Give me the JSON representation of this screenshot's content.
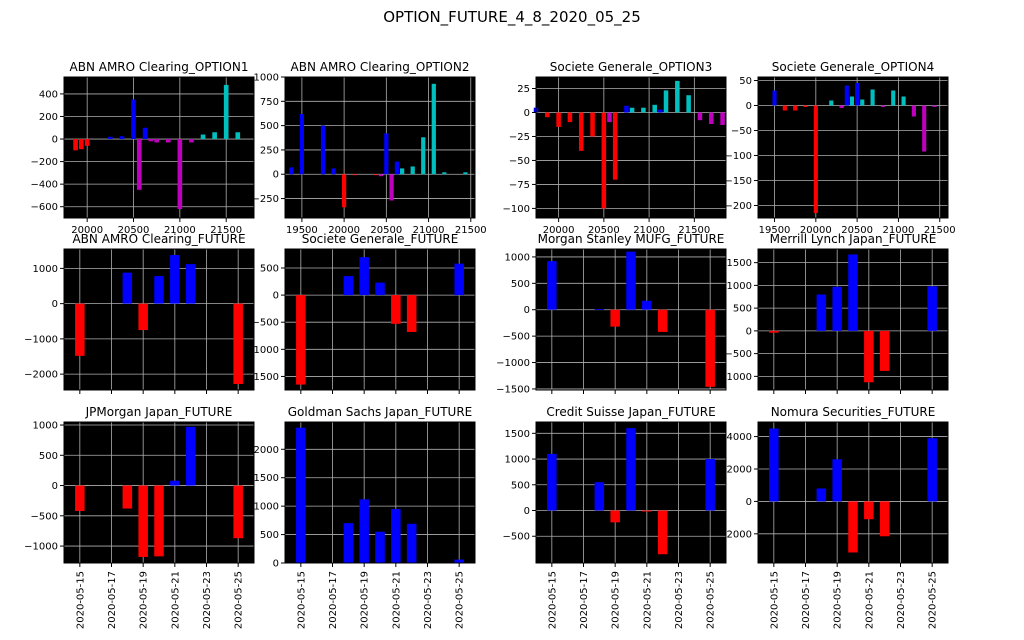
{
  "figure": {
    "title": "OPTION_FUTURE_4_8_2020_05_25",
    "colors": {
      "red": "#ff0000",
      "blue": "#0000ff",
      "magenta": "#bf00bf",
      "cyan": "#00bfbf",
      "background": "#000000",
      "grid": "#b0b0b0"
    }
  },
  "chart_data": [
    {
      "title": "ABN AMRO Clearing_OPTION1",
      "type": "bar",
      "xlim": [
        19750,
        21800
      ],
      "ylim": [
        -700,
        550
      ],
      "xticks": [
        20000,
        20500,
        21000,
        21500
      ],
      "yticks": [
        -600,
        -400,
        -200,
        0,
        200,
        400
      ],
      "grid": true,
      "bar_width": 50,
      "bars": [
        {
          "x": 19875,
          "y": -100,
          "color": "red"
        },
        {
          "x": 19937,
          "y": -90,
          "color": "red"
        },
        {
          "x": 20000,
          "y": -60,
          "color": "red"
        },
        {
          "x": 20250,
          "y": 20,
          "color": "blue"
        },
        {
          "x": 20375,
          "y": 25,
          "color": "blue"
        },
        {
          "x": 20500,
          "y": 350,
          "color": "blue"
        },
        {
          "x": 20562,
          "y": -450,
          "color": "magenta"
        },
        {
          "x": 20625,
          "y": 100,
          "color": "blue"
        },
        {
          "x": 20687,
          "y": -20,
          "color": "magenta"
        },
        {
          "x": 20750,
          "y": -30,
          "color": "magenta"
        },
        {
          "x": 20875,
          "y": -30,
          "color": "magenta"
        },
        {
          "x": 21000,
          "y": -620,
          "color": "magenta"
        },
        {
          "x": 21125,
          "y": -30,
          "color": "magenta"
        },
        {
          "x": 21250,
          "y": 40,
          "color": "cyan"
        },
        {
          "x": 21375,
          "y": 60,
          "color": "cyan"
        },
        {
          "x": 21500,
          "y": 480,
          "color": "cyan"
        },
        {
          "x": 21625,
          "y": 60,
          "color": "cyan"
        }
      ]
    },
    {
      "title": "ABN AMRO Clearing_OPTION2",
      "type": "bar",
      "xlim": [
        19300,
        21550
      ],
      "ylim": [
        -450,
        1000
      ],
      "xticks": [
        19500,
        20000,
        20500,
        21000,
        21500
      ],
      "yticks": [
        -250,
        0,
        250,
        500,
        750,
        1000
      ],
      "grid": true,
      "bar_width": 50,
      "bars": [
        {
          "x": 19375,
          "y": 70,
          "color": "blue"
        },
        {
          "x": 19500,
          "y": 620,
          "color": "blue"
        },
        {
          "x": 19750,
          "y": 500,
          "color": "blue"
        },
        {
          "x": 19875,
          "y": 60,
          "color": "blue"
        },
        {
          "x": 20000,
          "y": -340,
          "color": "red"
        },
        {
          "x": 20125,
          "y": -10,
          "color": "red"
        },
        {
          "x": 20375,
          "y": -10,
          "color": "red"
        },
        {
          "x": 20437,
          "y": -20,
          "color": "magenta"
        },
        {
          "x": 20500,
          "y": 420,
          "color": "blue"
        },
        {
          "x": 20562,
          "y": -270,
          "color": "magenta"
        },
        {
          "x": 20625,
          "y": 130,
          "color": "blue"
        },
        {
          "x": 20687,
          "y": 60,
          "color": "cyan"
        },
        {
          "x": 20812,
          "y": 80,
          "color": "cyan"
        },
        {
          "x": 20937,
          "y": 380,
          "color": "cyan"
        },
        {
          "x": 21062,
          "y": 930,
          "color": "cyan"
        },
        {
          "x": 21187,
          "y": 20,
          "color": "cyan"
        },
        {
          "x": 21437,
          "y": 20,
          "color": "cyan"
        }
      ]
    },
    {
      "title": "Societe Generale_OPTION3",
      "type": "bar",
      "xlim": [
        19750,
        21850
      ],
      "ylim": [
        -110,
        37
      ],
      "xticks": [
        20000,
        20500,
        21000,
        21500
      ],
      "yticks": [
        -100,
        -75,
        -50,
        -25,
        0,
        25
      ],
      "grid": true,
      "bar_width": 50,
      "bars": [
        {
          "x": 19750,
          "y": 5,
          "color": "blue"
        },
        {
          "x": 19875,
          "y": -5,
          "color": "red"
        },
        {
          "x": 20000,
          "y": -15,
          "color": "red"
        },
        {
          "x": 20125,
          "y": -10,
          "color": "red"
        },
        {
          "x": 20250,
          "y": -40,
          "color": "red"
        },
        {
          "x": 20375,
          "y": -25,
          "color": "red"
        },
        {
          "x": 20500,
          "y": -100,
          "color": "red"
        },
        {
          "x": 20562,
          "y": -10,
          "color": "magenta"
        },
        {
          "x": 20625,
          "y": -70,
          "color": "red"
        },
        {
          "x": 20750,
          "y": 7,
          "color": "blue"
        },
        {
          "x": 20812,
          "y": 5,
          "color": "cyan"
        },
        {
          "x": 20937,
          "y": 5,
          "color": "cyan"
        },
        {
          "x": 21062,
          "y": 8,
          "color": "cyan"
        },
        {
          "x": 21125,
          "y": 3,
          "color": "blue"
        },
        {
          "x": 21187,
          "y": 23,
          "color": "cyan"
        },
        {
          "x": 21312,
          "y": 33,
          "color": "cyan"
        },
        {
          "x": 21437,
          "y": 18,
          "color": "cyan"
        },
        {
          "x": 21562,
          "y": -8,
          "color": "magenta"
        },
        {
          "x": 21687,
          "y": -12,
          "color": "magenta"
        },
        {
          "x": 21812,
          "y": -13,
          "color": "magenta"
        }
      ]
    },
    {
      "title": "Societe Generale_OPTION4",
      "type": "bar",
      "xlim": [
        19300,
        21600
      ],
      "ylim": [
        -225,
        57
      ],
      "xticks": [
        19500,
        20000,
        20500,
        21000,
        21500
      ],
      "yticks": [
        -200,
        -150,
        -100,
        -50,
        0,
        50
      ],
      "grid": true,
      "bar_width": 50,
      "bars": [
        {
          "x": 19500,
          "y": 30,
          "color": "blue"
        },
        {
          "x": 19625,
          "y": -10,
          "color": "red"
        },
        {
          "x": 19750,
          "y": -10,
          "color": "red"
        },
        {
          "x": 19875,
          "y": -3,
          "color": "red"
        },
        {
          "x": 20000,
          "y": -215,
          "color": "red"
        },
        {
          "x": 20187,
          "y": 10,
          "color": "cyan"
        },
        {
          "x": 20312,
          "y": -5,
          "color": "magenta"
        },
        {
          "x": 20375,
          "y": 40,
          "color": "blue"
        },
        {
          "x": 20437,
          "y": 18,
          "color": "cyan"
        },
        {
          "x": 20500,
          "y": 45,
          "color": "blue"
        },
        {
          "x": 20562,
          "y": 12,
          "color": "cyan"
        },
        {
          "x": 20687,
          "y": 32,
          "color": "cyan"
        },
        {
          "x": 20812,
          "y": -3,
          "color": "magenta"
        },
        {
          "x": 20937,
          "y": 30,
          "color": "cyan"
        },
        {
          "x": 21062,
          "y": 18,
          "color": "cyan"
        },
        {
          "x": 21187,
          "y": -22,
          "color": "magenta"
        },
        {
          "x": 21312,
          "y": -92,
          "color": "magenta"
        },
        {
          "x": 21437,
          "y": -3,
          "color": "magenta"
        }
      ]
    },
    {
      "title": "ABN AMRO Clearing_FUTURE",
      "type": "bar",
      "ylim": [
        -2450,
        1550
      ],
      "yticks": [
        -2000,
        -1000,
        0,
        1000
      ],
      "grid": true,
      "bars": [
        {
          "date": "2020-05-15",
          "y": -1480,
          "color": "red"
        },
        {
          "date": "2020-05-18",
          "y": 880,
          "color": "blue"
        },
        {
          "date": "2020-05-19",
          "y": -750,
          "color": "red"
        },
        {
          "date": "2020-05-20",
          "y": 780,
          "color": "blue"
        },
        {
          "date": "2020-05-21",
          "y": 1380,
          "color": "blue"
        },
        {
          "date": "2020-05-22",
          "y": 1120,
          "color": "blue"
        },
        {
          "date": "2020-05-25",
          "y": -2280,
          "color": "red"
        }
      ]
    },
    {
      "title": "Societe Generale_FUTURE",
      "type": "bar",
      "ylim": [
        -1750,
        850
      ],
      "yticks": [
        -1500,
        -1000,
        -500,
        0,
        500
      ],
      "grid": true,
      "bars": [
        {
          "date": "2020-05-15",
          "y": -1650,
          "color": "red"
        },
        {
          "date": "2020-05-18",
          "y": 350,
          "color": "blue"
        },
        {
          "date": "2020-05-19",
          "y": 700,
          "color": "blue"
        },
        {
          "date": "2020-05-20",
          "y": 230,
          "color": "blue"
        },
        {
          "date": "2020-05-21",
          "y": -530,
          "color": "red"
        },
        {
          "date": "2020-05-22",
          "y": -680,
          "color": "red"
        },
        {
          "date": "2020-05-25",
          "y": 580,
          "color": "blue"
        }
      ]
    },
    {
      "title": "Morgan Stanley MUFG_FUTURE",
      "type": "bar",
      "ylim": [
        -1520,
        1150
      ],
      "yticks": [
        -1500,
        -1000,
        -500,
        0,
        500,
        1000
      ],
      "grid": true,
      "bars": [
        {
          "date": "2020-05-15",
          "y": 920,
          "color": "blue"
        },
        {
          "date": "2020-05-18",
          "y": 10,
          "color": "blue"
        },
        {
          "date": "2020-05-19",
          "y": -320,
          "color": "red"
        },
        {
          "date": "2020-05-20",
          "y": 1100,
          "color": "blue"
        },
        {
          "date": "2020-05-21",
          "y": 170,
          "color": "blue"
        },
        {
          "date": "2020-05-22",
          "y": -420,
          "color": "red"
        },
        {
          "date": "2020-05-25",
          "y": -1460,
          "color": "red"
        }
      ]
    },
    {
      "title": "Merrill Lynch Japan_FUTURE",
      "type": "bar",
      "ylim": [
        -1300,
        1800
      ],
      "yticks": [
        -1000,
        -500,
        0,
        500,
        1000,
        1500
      ],
      "grid": true,
      "bars": [
        {
          "date": "2020-05-15",
          "y": -40,
          "color": "red"
        },
        {
          "date": "2020-05-18",
          "y": 800,
          "color": "blue"
        },
        {
          "date": "2020-05-19",
          "y": 970,
          "color": "blue"
        },
        {
          "date": "2020-05-20",
          "y": 1680,
          "color": "blue"
        },
        {
          "date": "2020-05-21",
          "y": -1130,
          "color": "red"
        },
        {
          "date": "2020-05-22",
          "y": -880,
          "color": "red"
        },
        {
          "date": "2020-05-25",
          "y": 980,
          "color": "blue"
        }
      ]
    },
    {
      "title": "JPMorgan Japan_FUTURE",
      "type": "bar",
      "ylim": [
        -1280,
        1050
      ],
      "yticks": [
        -1000,
        -500,
        0,
        500,
        1000
      ],
      "grid": true,
      "xticks": [
        "2020-05-15",
        "2020-05-17",
        "2020-05-19",
        "2020-05-21",
        "2020-05-23",
        "2020-05-25"
      ],
      "bars": [
        {
          "date": "2020-05-15",
          "y": -420,
          "color": "red"
        },
        {
          "date": "2020-05-18",
          "y": -380,
          "color": "red"
        },
        {
          "date": "2020-05-19",
          "y": -1180,
          "color": "red"
        },
        {
          "date": "2020-05-20",
          "y": -1170,
          "color": "red"
        },
        {
          "date": "2020-05-21",
          "y": 80,
          "color": "blue"
        },
        {
          "date": "2020-05-22",
          "y": 970,
          "color": "blue"
        },
        {
          "date": "2020-05-25",
          "y": -870,
          "color": "red"
        }
      ]
    },
    {
      "title": "Goldman Sachs Japan_FUTURE",
      "type": "bar",
      "ylim": [
        0,
        2480
      ],
      "yticks": [
        0,
        500,
        1000,
        1500,
        2000
      ],
      "grid": true,
      "xticks": [
        "2020-05-15",
        "2020-05-17",
        "2020-05-19",
        "2020-05-21",
        "2020-05-23",
        "2020-05-25"
      ],
      "bars": [
        {
          "date": "2020-05-15",
          "y": 2380,
          "color": "blue"
        },
        {
          "date": "2020-05-18",
          "y": 700,
          "color": "blue"
        },
        {
          "date": "2020-05-19",
          "y": 1120,
          "color": "blue"
        },
        {
          "date": "2020-05-20",
          "y": 550,
          "color": "blue"
        },
        {
          "date": "2020-05-21",
          "y": 950,
          "color": "blue"
        },
        {
          "date": "2020-05-22",
          "y": 690,
          "color": "blue"
        },
        {
          "date": "2020-05-25",
          "y": 60,
          "color": "blue"
        }
      ]
    },
    {
      "title": "Credit Suisse Japan_FUTURE",
      "type": "bar",
      "ylim": [
        -1020,
        1720
      ],
      "yticks": [
        -500,
        0,
        500,
        1000,
        1500
      ],
      "grid": true,
      "xticks": [
        "2020-05-15",
        "2020-05-17",
        "2020-05-19",
        "2020-05-21",
        "2020-05-23",
        "2020-05-25"
      ],
      "bars": [
        {
          "date": "2020-05-15",
          "y": 1100,
          "color": "blue"
        },
        {
          "date": "2020-05-18",
          "y": 550,
          "color": "blue"
        },
        {
          "date": "2020-05-19",
          "y": -230,
          "color": "red"
        },
        {
          "date": "2020-05-20",
          "y": 1600,
          "color": "blue"
        },
        {
          "date": "2020-05-21",
          "y": -20,
          "color": "red"
        },
        {
          "date": "2020-05-22",
          "y": -850,
          "color": "red"
        },
        {
          "date": "2020-05-25",
          "y": 1000,
          "color": "blue"
        }
      ]
    },
    {
      "title": "Nomura Securities_FUTURE",
      "type": "bar",
      "ylim": [
        -3800,
        4900
      ],
      "yticks": [
        -2000,
        0,
        2000,
        4000
      ],
      "grid": true,
      "xticks": [
        "2020-05-15",
        "2020-05-17",
        "2020-05-19",
        "2020-05-21",
        "2020-05-23",
        "2020-05-25"
      ],
      "bars": [
        {
          "date": "2020-05-15",
          "y": 4500,
          "color": "blue"
        },
        {
          "date": "2020-05-18",
          "y": 800,
          "color": "blue"
        },
        {
          "date": "2020-05-19",
          "y": 2600,
          "color": "blue"
        },
        {
          "date": "2020-05-20",
          "y": -3150,
          "color": "red"
        },
        {
          "date": "2020-05-21",
          "y": -1100,
          "color": "red"
        },
        {
          "date": "2020-05-22",
          "y": -2150,
          "color": "red"
        },
        {
          "date": "2020-05-25",
          "y": 3900,
          "color": "blue"
        }
      ]
    }
  ]
}
